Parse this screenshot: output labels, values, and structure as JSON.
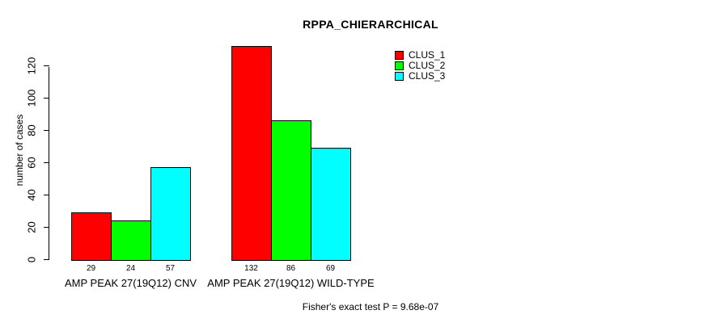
{
  "colors": {
    "background": "#ffffff",
    "axis": "#000000",
    "text": "#000000",
    "bar_border": "#000000"
  },
  "chart_data": {
    "type": "bar",
    "title": "RPPA_CHIERARCHICAL",
    "xlabel": "",
    "ylabel": "number of cases",
    "footer": "Fisher's exact test P = 9.68e-07",
    "categories": [
      "AMP PEAK 27(19Q12) CNV",
      "AMP PEAK 27(19Q12) WILD-TYPE"
    ],
    "series": [
      {
        "name": "CLUS_1",
        "color": "#ff0000",
        "values": [
          29,
          132
        ]
      },
      {
        "name": "CLUS_2",
        "color": "#00ff00",
        "values": [
          24,
          86
        ]
      },
      {
        "name": "CLUS_3",
        "color": "#00ffff",
        "values": [
          57,
          69
        ]
      }
    ],
    "yticks": [
      0,
      20,
      40,
      60,
      80,
      100,
      120
    ],
    "ylim": [
      0,
      135
    ],
    "grid": false,
    "legend_position": "top-right",
    "bar_value_labels_shown": true
  }
}
